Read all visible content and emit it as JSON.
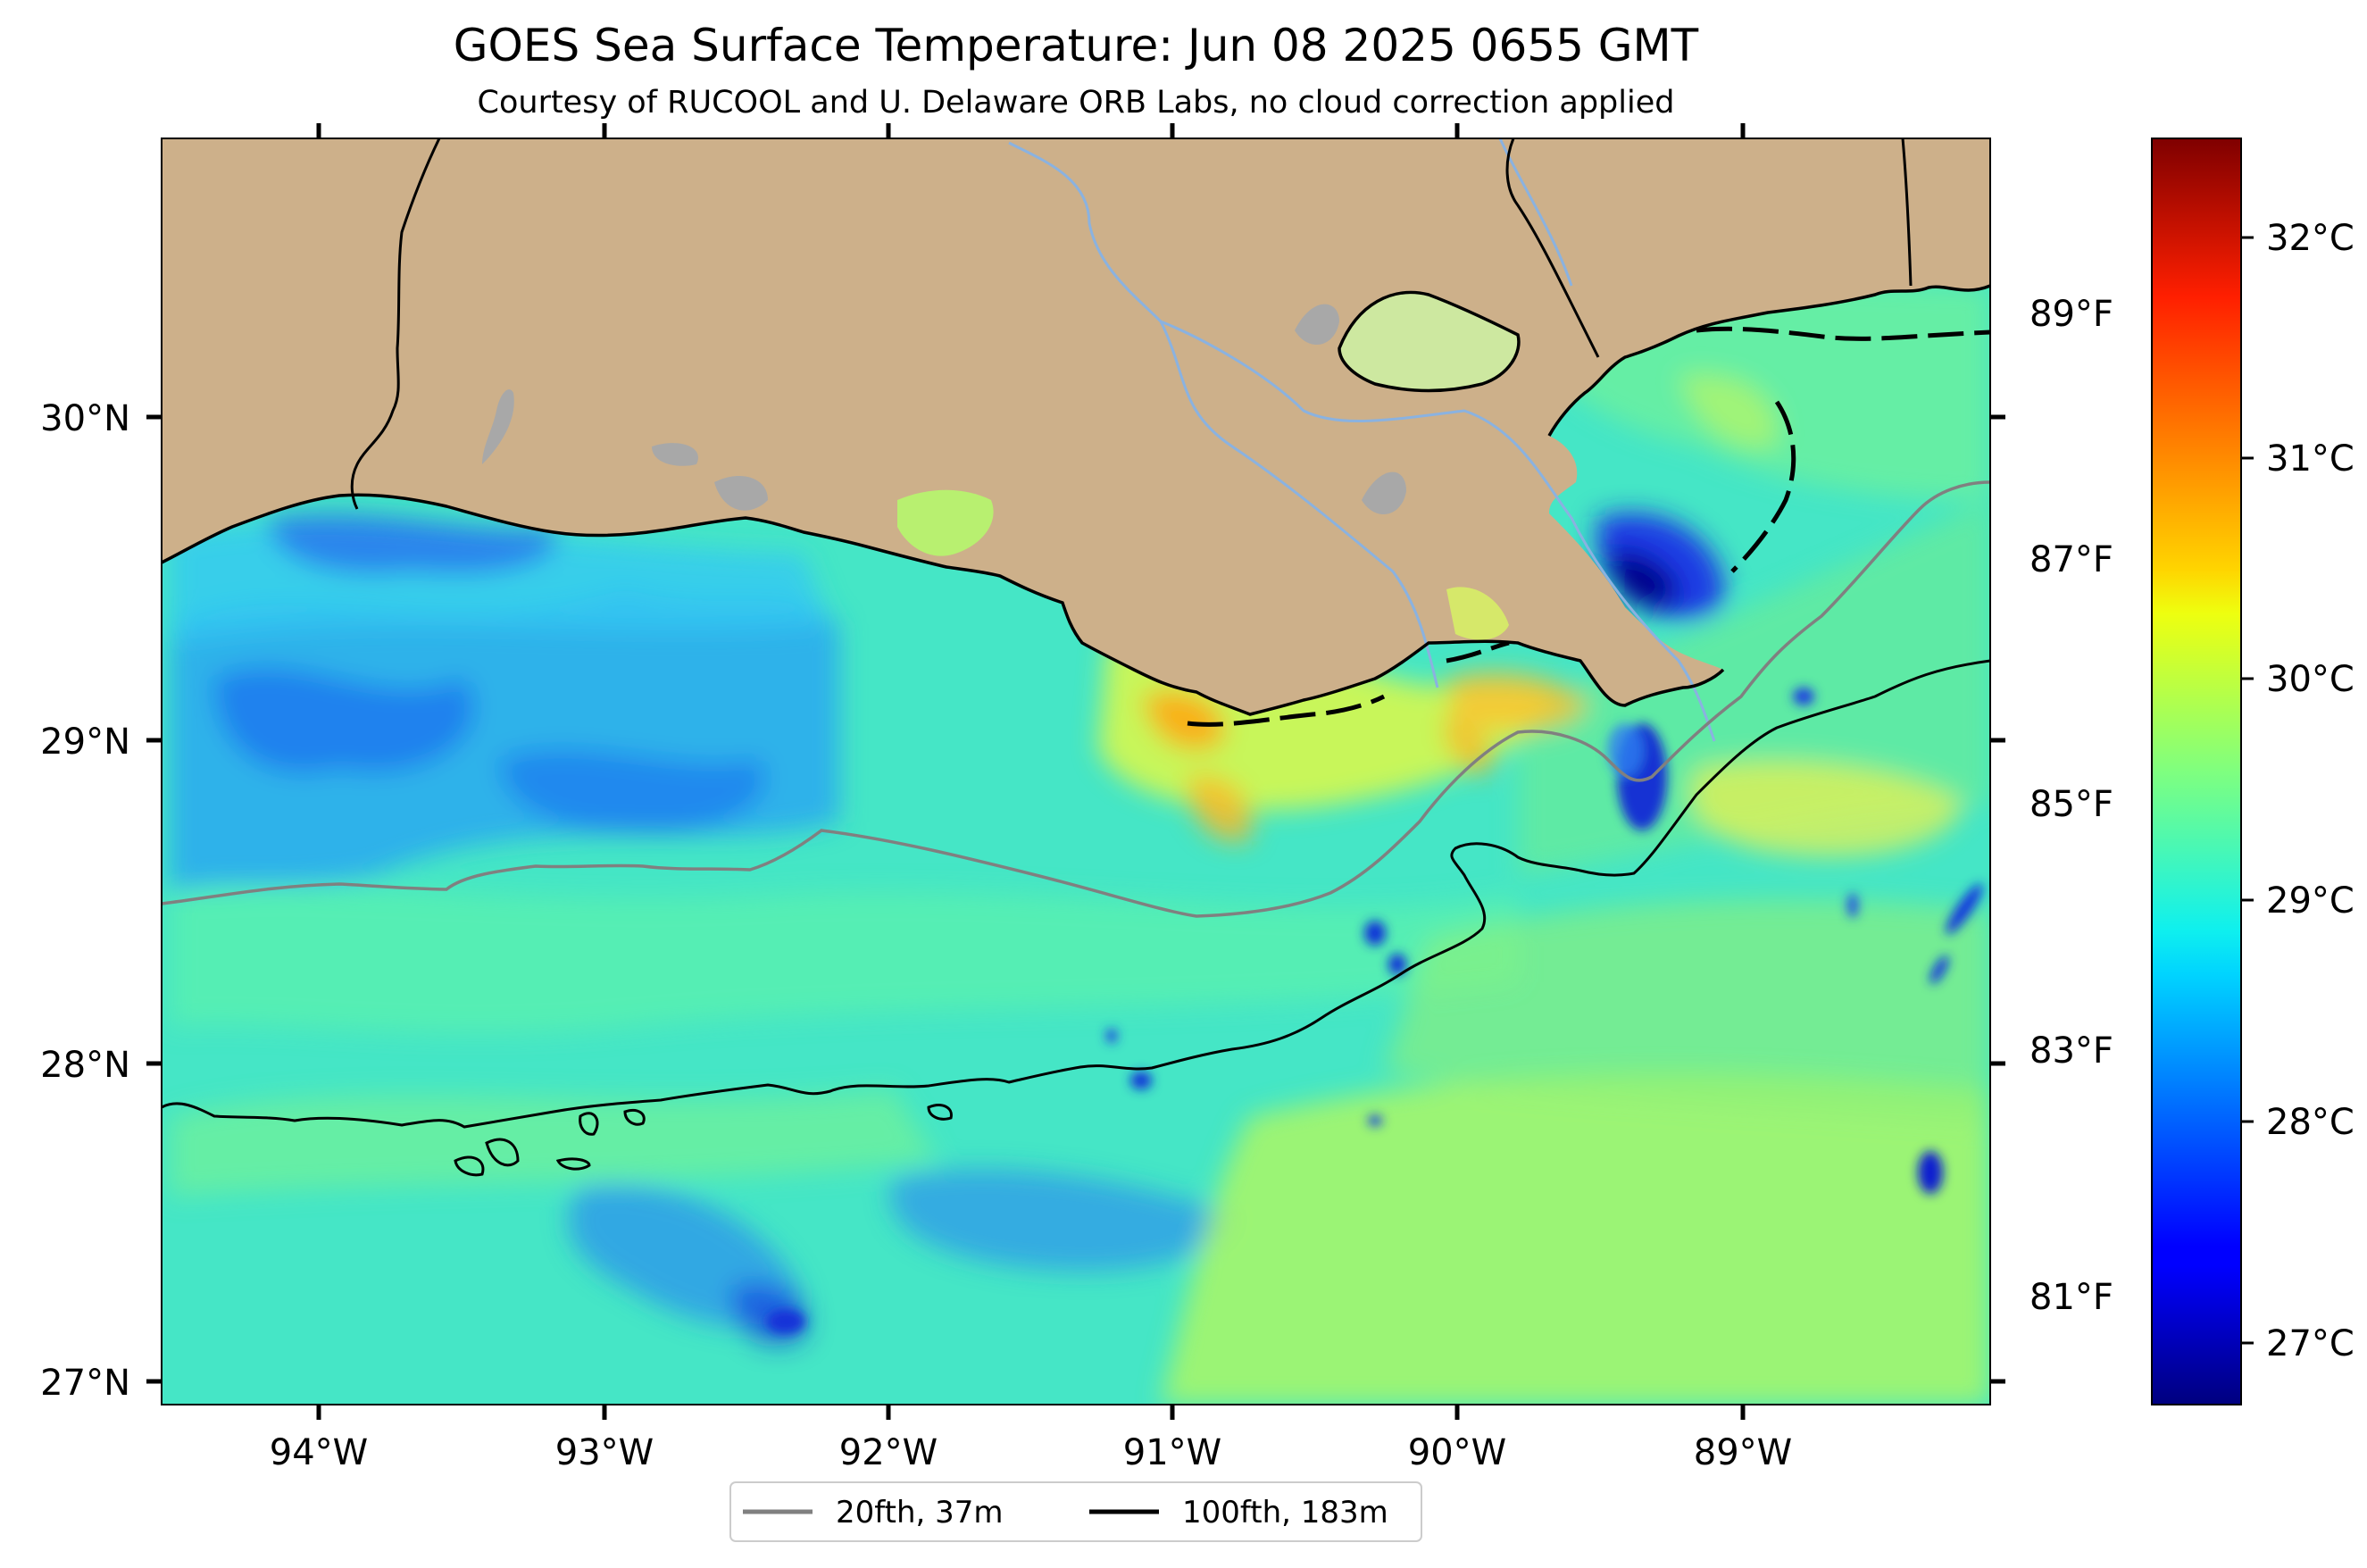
{
  "title": "GOES Sea Surface Temperature: Jun 08 2025 0655 GMT",
  "subtitle": "Courtesy of RUCOOL and U. Delaware ORB Labs, no cloud correction applied",
  "map": {
    "lon_labels": [
      "94°W",
      "93°W",
      "92°W",
      "91°W",
      "90°W",
      "89°W"
    ],
    "lat_labels": [
      "30°N",
      "29°N",
      "28°N",
      "27°N"
    ],
    "land_color": "#cdb08a",
    "ocean_base_color": "#45e6c6"
  },
  "colorbar": {
    "colormap": "jet",
    "celsius_labels": [
      "32°C",
      "31°C",
      "30°C",
      "29°C",
      "28°C",
      "27°C"
    ],
    "fahrenheit_labels": [
      "89°F",
      "87°F",
      "85°F",
      "83°F",
      "81°F"
    ]
  },
  "legend": {
    "items": [
      {
        "label": "20fth, 37m",
        "color": "#808080"
      },
      {
        "label": "100fth, 183m",
        "color": "#000000"
      }
    ]
  }
}
